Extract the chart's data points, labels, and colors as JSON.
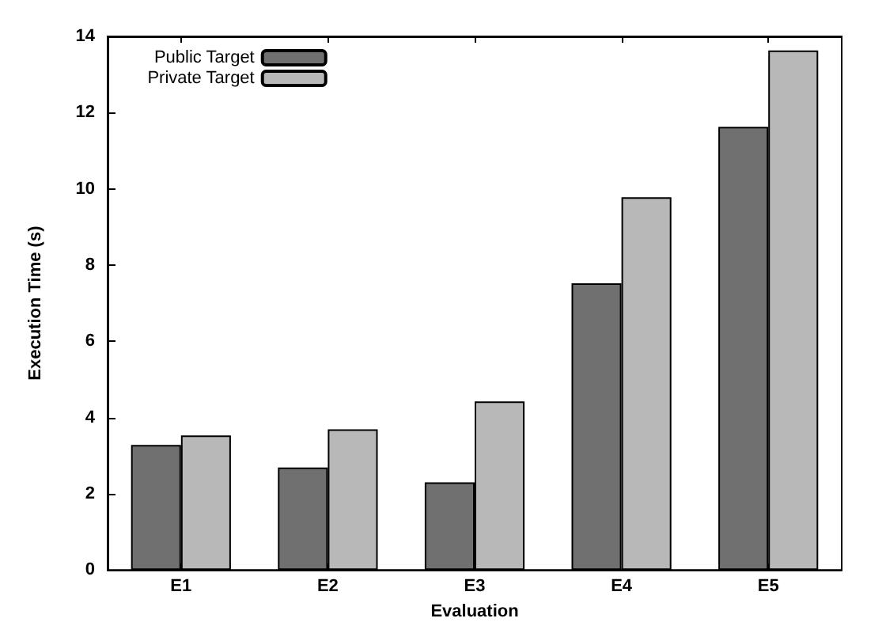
{
  "chart_data": {
    "type": "bar",
    "xlabel": "Evaluation",
    "ylabel": "Execution Time (s)",
    "categories": [
      "E1",
      "E2",
      "E3",
      "E4",
      "E5"
    ],
    "series": [
      {
        "name": "Public Target",
        "color": "#707070",
        "values": [
          3.28,
          2.69,
          2.3,
          7.52,
          11.63
        ]
      },
      {
        "name": "Private Target",
        "color": "#b8b8b8",
        "values": [
          3.53,
          3.69,
          4.42,
          9.78,
          13.63
        ]
      }
    ],
    "ylim": [
      0,
      14
    ],
    "yticks": [
      0,
      2,
      4,
      6,
      8,
      10,
      12,
      14
    ],
    "grid": false,
    "legend": "top left"
  }
}
